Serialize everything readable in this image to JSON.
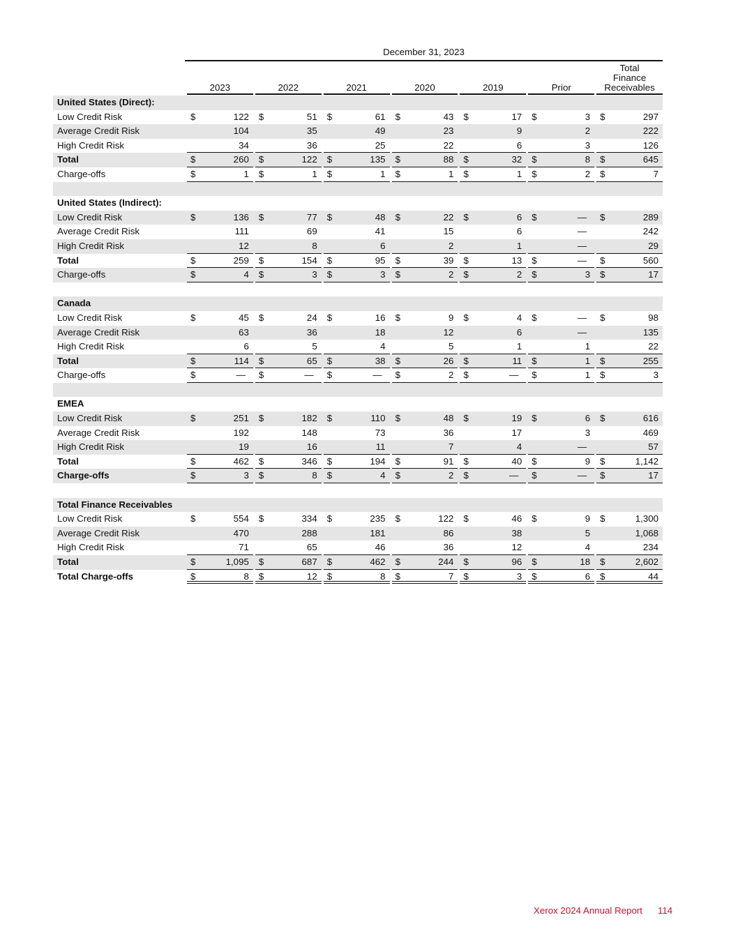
{
  "table": {
    "header_group": "December 31, 2023",
    "columns": [
      "2023",
      "2022",
      "2021",
      "2020",
      "2019",
      "Prior",
      "Total\nFinance\nReceivables"
    ],
    "rows": [
      {
        "label": "United States (Direct):",
        "bold": true,
        "header": true
      },
      {
        "label": "Low Credit Risk",
        "dollar": true,
        "values": [
          "122",
          "51",
          "61",
          "43",
          "17",
          "3",
          "297"
        ]
      },
      {
        "label": "Average Credit Risk",
        "values": [
          "104",
          "35",
          "49",
          "23",
          "9",
          "2",
          "222"
        ]
      },
      {
        "label": "High Credit Risk",
        "line": "under",
        "values": [
          "34",
          "36",
          "25",
          "22",
          "6",
          "3",
          "126"
        ]
      },
      {
        "label": "Total",
        "bold": true,
        "dollar": true,
        "line": "under",
        "values": [
          "260",
          "122",
          "135",
          "88",
          "32",
          "8",
          "645"
        ]
      },
      {
        "label": "Charge-offs",
        "dollar": true,
        "line": "under",
        "values": [
          "1",
          "1",
          "1",
          "1",
          "1",
          "2",
          "7"
        ]
      },
      {
        "blank": true
      },
      {
        "label": "United States (Indirect):",
        "bold": true,
        "header": true
      },
      {
        "label": "Low Credit Risk",
        "dollar": true,
        "values": [
          "136",
          "77",
          "48",
          "22",
          "6",
          "—",
          "289"
        ]
      },
      {
        "label": "Average Credit Risk",
        "values": [
          "111",
          "69",
          "41",
          "15",
          "6",
          "—",
          "242"
        ]
      },
      {
        "label": "High Credit Risk",
        "line": "under",
        "values": [
          "12",
          "8",
          "6",
          "2",
          "1",
          "—",
          "29"
        ]
      },
      {
        "label": "Total",
        "bold": true,
        "dollar": true,
        "line": "under",
        "values": [
          "259",
          "154",
          "95",
          "39",
          "13",
          "—",
          "560"
        ]
      },
      {
        "label": "Charge-offs",
        "dollar": true,
        "line": "under",
        "values": [
          "4",
          "3",
          "3",
          "2",
          "2",
          "3",
          "17"
        ]
      },
      {
        "blank": true
      },
      {
        "label": "Canada",
        "bold": true,
        "header": true
      },
      {
        "label": "Low Credit Risk",
        "dollar": true,
        "values": [
          "45",
          "24",
          "16",
          "9",
          "4",
          "—",
          "98"
        ]
      },
      {
        "label": "Average Credit Risk",
        "values": [
          "63",
          "36",
          "18",
          "12",
          "6",
          "—",
          "135"
        ]
      },
      {
        "label": "High Credit Risk",
        "line": "under",
        "values": [
          "6",
          "5",
          "4",
          "5",
          "1",
          "1",
          "22"
        ]
      },
      {
        "label": "Total",
        "bold": true,
        "dollar": true,
        "line": "under",
        "values": [
          "114",
          "65",
          "38",
          "26",
          "11",
          "1",
          "255"
        ]
      },
      {
        "label": "Charge-offs",
        "dollar": true,
        "line": "under",
        "values": [
          "—",
          "—",
          "—",
          "2",
          "—",
          "1",
          "3"
        ]
      },
      {
        "blank": true
      },
      {
        "label": "EMEA",
        "bold": true,
        "header": true
      },
      {
        "label": "Low Credit Risk",
        "dollar": true,
        "values": [
          "251",
          "182",
          "110",
          "48",
          "19",
          "6",
          "616"
        ]
      },
      {
        "label": "Average Credit Risk",
        "values": [
          "192",
          "148",
          "73",
          "36",
          "17",
          "3",
          "469"
        ]
      },
      {
        "label": "High Credit Risk",
        "line": "under",
        "values": [
          "19",
          "16",
          "11",
          "7",
          "4",
          "—",
          "57"
        ]
      },
      {
        "label": "Total",
        "bold": true,
        "dollar": true,
        "line": "under",
        "values": [
          "462",
          "346",
          "194",
          "91",
          "40",
          "9",
          "1,142"
        ]
      },
      {
        "label": "Charge-offs",
        "bold": true,
        "dollar": true,
        "line": "under",
        "values": [
          "3",
          "8",
          "4",
          "2",
          "—",
          "—",
          "17"
        ]
      },
      {
        "blank": true
      },
      {
        "label": "Total Finance Receivables",
        "bold": true,
        "header": true
      },
      {
        "label": "Low Credit Risk",
        "dollar": true,
        "values": [
          "554",
          "334",
          "235",
          "122",
          "46",
          "9",
          "1,300"
        ]
      },
      {
        "label": "Average Credit Risk",
        "values": [
          "470",
          "288",
          "181",
          "86",
          "38",
          "5",
          "1,068"
        ]
      },
      {
        "label": "High Credit Risk",
        "line": "under",
        "values": [
          "71",
          "65",
          "46",
          "36",
          "12",
          "4",
          "234"
        ]
      },
      {
        "label": "Total",
        "bold": true,
        "dollar": true,
        "line": "under",
        "values": [
          "1,095",
          "687",
          "462",
          "244",
          "96",
          "18",
          "2,602"
        ]
      },
      {
        "label": "Total Charge-offs",
        "bold": true,
        "dollar": true,
        "line": "double",
        "values": [
          "8",
          "12",
          "8",
          "7",
          "3",
          "6",
          "44"
        ]
      }
    ],
    "currency_symbol": "$",
    "shade_color": "#e5e5e5"
  },
  "footer": {
    "report_title": "Xerox 2024 Annual Report",
    "page_number": "114",
    "color": "#c8102e"
  }
}
